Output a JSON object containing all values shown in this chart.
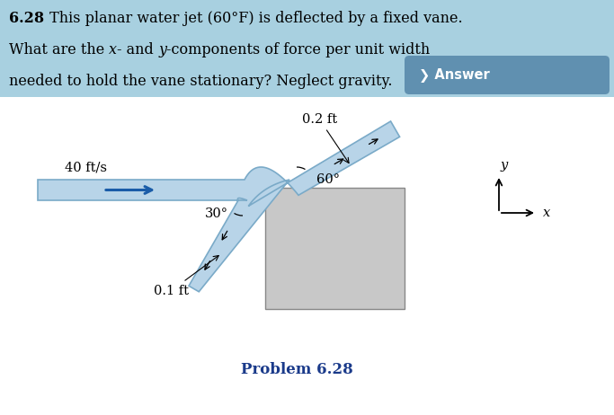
{
  "title_text": "6.28",
  "header_line1": " This planar water jet (60°F) is deflected by a fixed vane.",
  "header_line2_parts": [
    [
      "What are the ",
      false,
      false
    ],
    [
      "x",
      false,
      true
    ],
    [
      "- and ",
      false,
      false
    ],
    [
      "y",
      false,
      true
    ],
    [
      "-components of force per unit width",
      false,
      false
    ]
  ],
  "header_line3": "needed to hold the vane stationary? Neglect gravity.",
  "answer_btn": "❯ Answer",
  "label_speed": "40 ft/s",
  "label_angle_out": "60°",
  "label_angle_in": "30°",
  "label_width_in": "0.1 ft",
  "label_width_out": "0.2 ft",
  "problem_label": "Problem 6.28",
  "header_bg": "#a8d0e0",
  "vane_color": "#c8c8c8",
  "vane_edge": "#888888",
  "jet_fill": "#b8d4e8",
  "jet_edge": "#7aaac8",
  "text_dark": "#111111",
  "text_blue": "#1a3a8a",
  "answer_bg": "#6090b0",
  "arrow_color": "#1a5ca8"
}
